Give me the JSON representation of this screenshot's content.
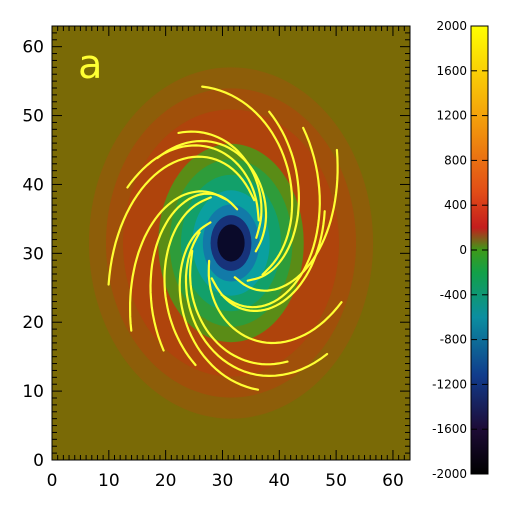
{
  "chart_data": {
    "type": "heatmap",
    "panel_label": "a",
    "x": {
      "ticks": [
        0,
        10,
        20,
        30,
        40,
        50,
        60
      ],
      "range": [
        0,
        63
      ]
    },
    "y": {
      "ticks": [
        0,
        10,
        20,
        30,
        40,
        50,
        60
      ],
      "range": [
        0,
        63
      ]
    },
    "colorbar": {
      "range": [
        -2000,
        2000
      ],
      "ticks": [
        2000,
        1600,
        1200,
        800,
        400,
        0,
        -400,
        -800,
        -1200,
        -1600,
        -2000
      ]
    },
    "field": {
      "background_value": 0,
      "center": [
        31.5,
        31.5
      ],
      "components": [
        {
          "kind": "core",
          "peak": -2000,
          "extent": [
            8,
            9
          ]
        },
        {
          "kind": "ring",
          "peak": 250,
          "radii": [
            17,
            23
          ]
        }
      ]
    },
    "field_lines": {
      "count": 16,
      "color": "#ffff33",
      "description": "spiral field lines emanating from the central spot"
    },
    "colors": {
      "background": "#7a6a06",
      "line": "#ffff33",
      "colormap_top": "#ffff00",
      "colormap_bottom": "#000000"
    }
  }
}
